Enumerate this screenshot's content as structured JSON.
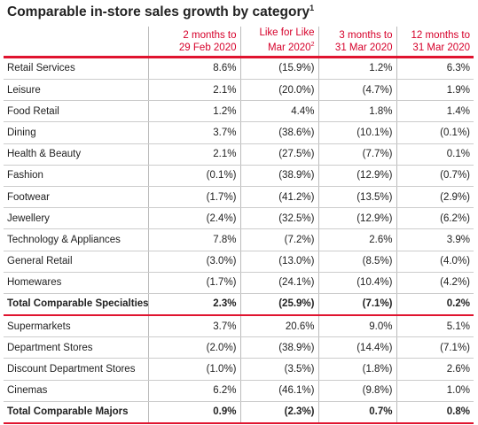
{
  "title": "Comparable in-store sales growth by category",
  "title_note": "1",
  "headers": [
    {
      "lines": [
        "2 months to",
        "29 Feb 2020"
      ]
    },
    {
      "lines": [
        "Like for Like",
        "Mar 2020"
      ],
      "note": "2"
    },
    {
      "lines": [
        "3 months to",
        "31 Mar 2020"
      ]
    },
    {
      "lines": [
        "12 months to",
        "31 Mar 2020"
      ]
    }
  ],
  "sections": [
    {
      "rows": [
        [
          "Retail Services",
          "8.6%",
          "(15.9%)",
          "1.2%",
          "6.3%"
        ],
        [
          "Leisure",
          "2.1%",
          "(20.0%)",
          "(4.7%)",
          "1.9%"
        ],
        [
          "Food Retail",
          "1.2%",
          "4.4%",
          "1.8%",
          "1.4%"
        ],
        [
          "Dining",
          "3.7%",
          "(38.6%)",
          "(10.1%)",
          "(0.1%)"
        ],
        [
          "Health & Beauty",
          "2.1%",
          "(27.5%)",
          "(7.7%)",
          "0.1%"
        ],
        [
          "Fashion",
          "(0.1%)",
          "(38.9%)",
          "(12.9%)",
          "(0.7%)"
        ],
        [
          "Footwear",
          "(1.7%)",
          "(41.2%)",
          "(13.5%)",
          "(2.9%)"
        ],
        [
          "Jewellery",
          "(2.4%)",
          "(32.5%)",
          "(12.9%)",
          "(6.2%)"
        ],
        [
          "Technology & Appliances",
          "7.8%",
          "(7.2%)",
          "2.6%",
          "3.9%"
        ],
        [
          "General Retail",
          "(3.0%)",
          "(13.0%)",
          "(8.5%)",
          "(4.0%)"
        ],
        [
          "Homewares",
          "(1.7%)",
          "(24.1%)",
          "(10.4%)",
          "(4.2%)"
        ]
      ],
      "total": [
        "Total Comparable Specialties",
        "2.3%",
        "(25.9%)",
        "(7.1%)",
        "0.2%"
      ]
    },
    {
      "rows": [
        [
          "Supermarkets",
          "3.7%",
          "20.6%",
          "9.0%",
          "5.1%"
        ],
        [
          "Department Stores",
          "(2.0%)",
          "(38.9%)",
          "(14.4%)",
          "(7.1%)"
        ],
        [
          "Discount Department Stores",
          "(1.0%)",
          "(3.5%)",
          "(1.8%)",
          "2.6%"
        ],
        [
          "Cinemas",
          "6.2%",
          "(46.1%)",
          "(9.8%)",
          "1.0%"
        ]
      ],
      "total": [
        "Total Comparable Majors",
        "0.9%",
        "(2.3%)",
        "0.7%",
        "0.8%"
      ]
    }
  ]
}
